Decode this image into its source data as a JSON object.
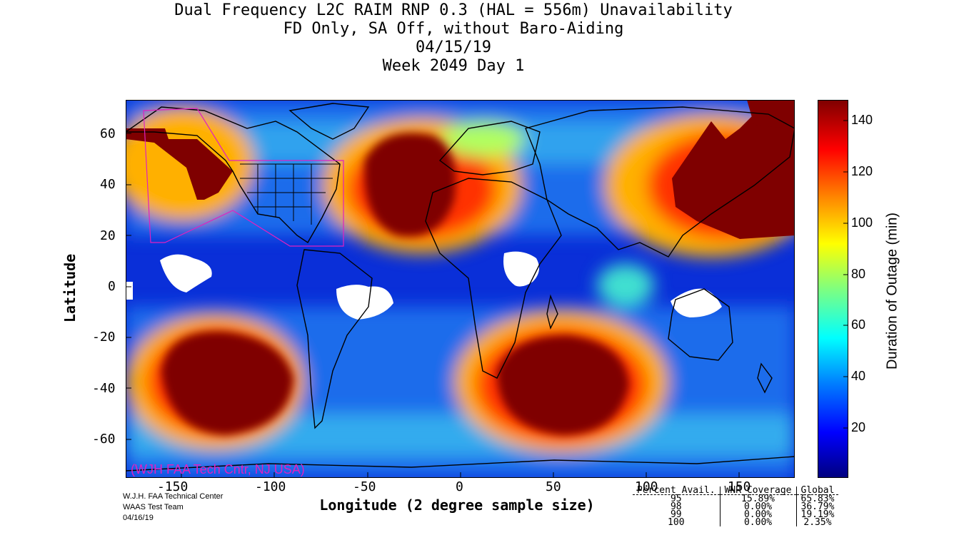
{
  "title": {
    "line1": "Dual Frequency L2C RAIM RNP 0.3 (HAL = 556m) Unavailability",
    "line2": "FD Only, SA Off, without Baro-Aiding",
    "line3": "04/15/19",
    "line4": "Week 2049 Day 1"
  },
  "axes": {
    "x_label": "Longitude (2 degree sample size)",
    "y_label": "Latitude",
    "x_ticks": [
      "-150",
      "-100",
      "-50",
      "0",
      "50",
      "100",
      "150"
    ],
    "y_ticks": [
      "60",
      "40",
      "20",
      "0",
      "-20",
      "-40",
      "-60"
    ]
  },
  "colorbar": {
    "label": "Duration of Outage (min)",
    "ticks": [
      "140",
      "120",
      "100",
      "80",
      "60",
      "40",
      "20"
    ],
    "colors": [
      "#00007f",
      "#0000ff",
      "#007fff",
      "#00ffff",
      "#7fff7f",
      "#ffff00",
      "#ff7f00",
      "#ff0000",
      "#7f0000"
    ]
  },
  "watermark": "(WJH FAA Tech Cntr, NJ USA)",
  "credits": [
    "W.J.H. FAA Technical Center",
    "WAAS Test Team",
    "04/16/19"
  ],
  "stats": {
    "headers": [
      "Percent Avail.",
      "WNR Coverage",
      "Global"
    ],
    "rows": [
      [
        "95",
        "15.89%",
        "65.83%"
      ],
      [
        "98",
        "0.00%",
        "36.79%"
      ],
      [
        "99",
        "0.00%",
        "19.19%"
      ],
      [
        "100",
        "0.00%",
        "2.35%"
      ]
    ]
  }
}
